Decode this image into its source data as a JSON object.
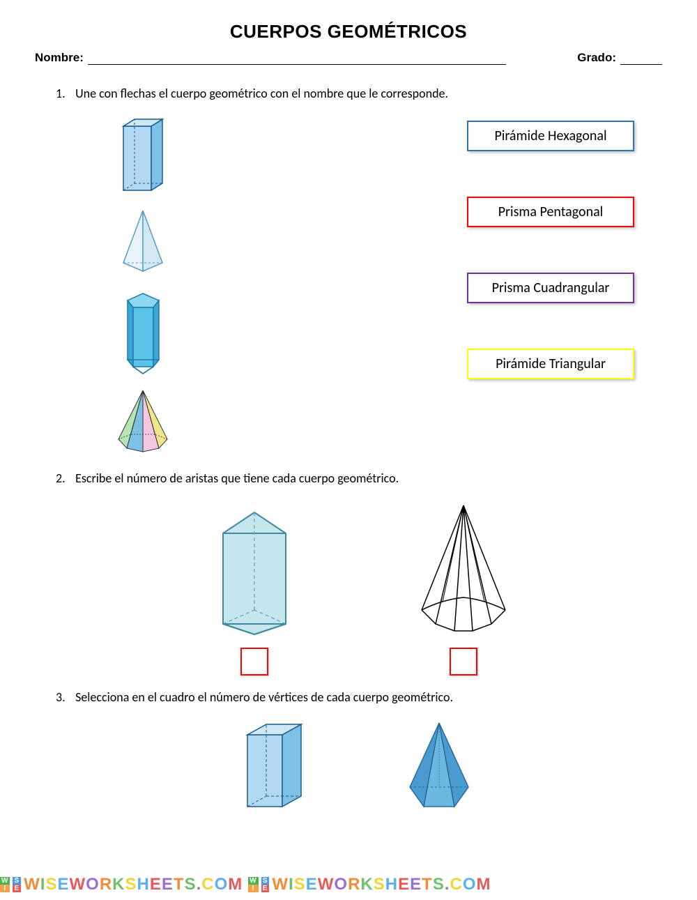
{
  "title": "CUERPOS GEOMÉTRICOS",
  "fields": {
    "name_label": "Nombre:",
    "grade_label": "Grado:"
  },
  "q1": {
    "number": "1.",
    "text": "Une con flechas el cuerpo geométrico con el nombre que le corresponde.",
    "labels": [
      {
        "text": "Pirámide Hexagonal",
        "border_color": "#2e74b5"
      },
      {
        "text": "Prisma Pentagonal",
        "border_color": "#ff0000"
      },
      {
        "text": "Prisma Cuadrangular",
        "border_color": "#7030a0"
      },
      {
        "text": "Pirámide Triangular",
        "border_color": "#ffff00"
      }
    ],
    "shapes": {
      "rect_prism": {
        "fill_light": "#b3d9f2",
        "fill_dark": "#7fc1e6",
        "stroke": "#1a5a8a"
      },
      "tri_pyramid": {
        "fill": "#d9ecf5",
        "stroke": "#5a9bc4"
      },
      "pent_prism": {
        "fill_front": "#5cc4e8",
        "fill_side": "#3ba8d4",
        "fill_top": "#8dd8f0",
        "stroke": "#1a7aa8"
      },
      "hex_pyramid_faces": [
        "#b3e6b3",
        "#7fc1e6",
        "#f5c6e0",
        "#f0e68c",
        "#c4b3e6",
        "#f5a6c4"
      ],
      "hex_pyramid_stroke": "#333"
    }
  },
  "q2": {
    "number": "2.",
    "text": "Escribe el número de aristas que tiene cada cuerpo geométrico.",
    "answer_box_color": "#ff0000",
    "tri_prism": {
      "fill": "#c5e6ed",
      "stroke": "#3d8a9e",
      "dash": "#6aadbf"
    },
    "oct_pyramid": {
      "stroke": "#000000"
    }
  },
  "q3": {
    "number": "3.",
    "text": "Selecciona en el cuadro el número de vértices de cada cuerpo geométrico.",
    "rect_prism": {
      "fill_light": "#b3d9f2",
      "fill_dark": "#7fc1e6",
      "stroke": "#1a5a8a"
    },
    "pent_pyramid": {
      "fill_front": "#6bb8e0",
      "fill_side": "#4a9bcf",
      "stroke": "#2a6a9a"
    }
  },
  "watermark": {
    "badge_colors": {
      "W": "#4ab54a",
      "I": "#f2a34a",
      "S": "#4a9be6",
      "E": "#e65a5a"
    },
    "text": "WISEWORKSHEETS.COM",
    "colors": [
      "#f08c3a",
      "#6fbf6f",
      "#f2d43a",
      "#5aaff2",
      "#e65a5a",
      "#9a6fd4",
      "#f08c3a",
      "#6fbf6f",
      "#f2d43a",
      "#5aaff2",
      "#e65a5a",
      "#9a6fd4",
      "#f08c3a",
      "#6fbf6f",
      "#888",
      "#f2d43a",
      "#5aaff2",
      "#e65a5a"
    ]
  }
}
